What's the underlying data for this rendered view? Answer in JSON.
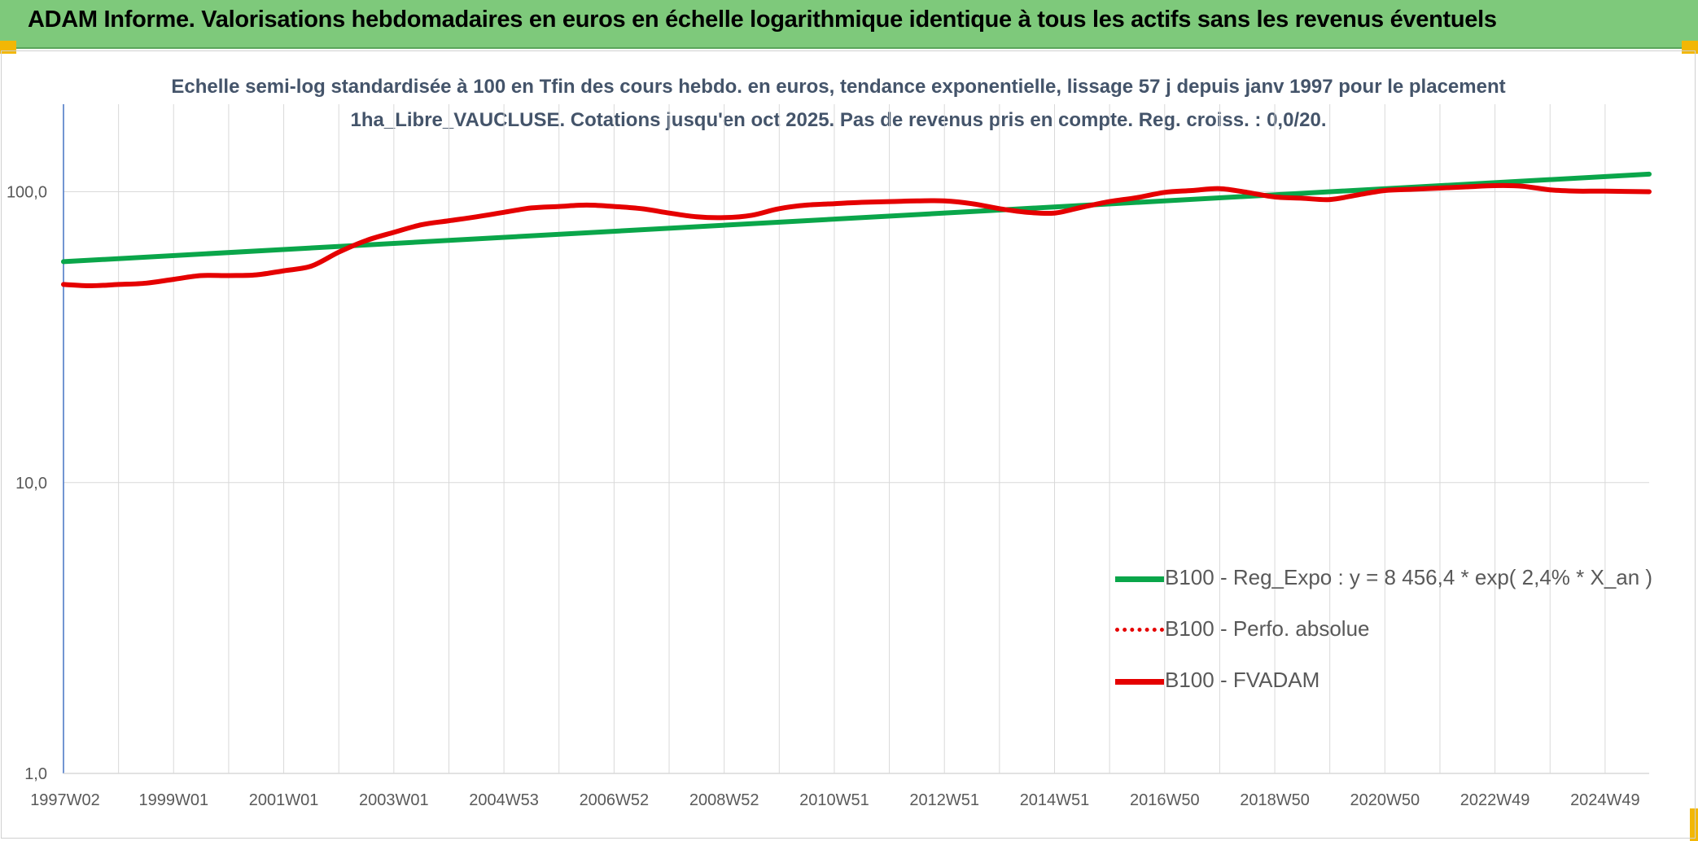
{
  "banner": {
    "title": "ADAM Informe. Valorisations hebdomadaires en euros en échelle logarithmique identique à tous les actifs sans les revenus éventuels",
    "color": "#7ec97b"
  },
  "chart_data": {
    "type": "line",
    "title": "Echelle semi-log standardisée à 100 en Tfin des cours hebdo. en euros, tendance exponentielle, lissage 57 j depuis janv 1997 pour le placement 1ha_Libre_VAUCLUSE. Cotations jusqu'en oct 2025. Pas de revenus pris en compte. Reg. croiss. : 0,0/20.",
    "y_scale": "log",
    "ylim": [
      1,
      200
    ],
    "y_ticks": [
      {
        "value": 1,
        "label": "1,0"
      },
      {
        "value": 10,
        "label": "10,0"
      },
      {
        "value": 100,
        "label": "100,0"
      }
    ],
    "x_range": [
      1997.0,
      2025.8
    ],
    "x_ticks": [
      {
        "value": 1997.0,
        "label": "1997W02"
      },
      {
        "value": 1999.0,
        "label": "1999W01"
      },
      {
        "value": 2001.0,
        "label": "2001W01"
      },
      {
        "value": 2003.0,
        "label": "2003W01"
      },
      {
        "value": 2005.0,
        "label": "2004W53"
      },
      {
        "value": 2007.0,
        "label": "2006W52"
      },
      {
        "value": 2009.0,
        "label": "2008W52"
      },
      {
        "value": 2011.0,
        "label": "2010W51"
      },
      {
        "value": 2013.0,
        "label": "2012W51"
      },
      {
        "value": 2015.0,
        "label": "2014W51"
      },
      {
        "value": 2017.0,
        "label": "2016W50"
      },
      {
        "value": 2019.0,
        "label": "2018W50"
      },
      {
        "value": 2021.0,
        "label": "2020W50"
      },
      {
        "value": 2023.0,
        "label": "2022W49"
      },
      {
        "value": 2025.0,
        "label": "2024W49"
      }
    ],
    "x_minor_gridlines": true,
    "legend_position": "lower-right",
    "series": [
      {
        "name": "B100 - Reg_Expo : y = 8 456,4 * exp( 2,4% *  X_an )",
        "style": "solid",
        "color": "#0aa64a",
        "x": [
          1997.0,
          2025.8
        ],
        "y": [
          57.5,
          115.0
        ]
      },
      {
        "name": "B100 - Perfo. absolue",
        "style": "dotted",
        "color": "#e50000",
        "x": [],
        "y": []
      },
      {
        "name": "B100 - FVADAM",
        "style": "solid",
        "color": "#e50000",
        "x": [
          1997.0,
          1997.5,
          1998.0,
          1998.5,
          1999.0,
          1999.5,
          2000.0,
          2000.5,
          2001.0,
          2001.5,
          2002.0,
          2002.5,
          2003.0,
          2003.5,
          2004.0,
          2004.5,
          2005.0,
          2005.5,
          2006.0,
          2006.5,
          2007.0,
          2007.5,
          2008.0,
          2008.5,
          2009.0,
          2009.5,
          2010.0,
          2010.5,
          2011.0,
          2011.5,
          2012.0,
          2012.5,
          2013.0,
          2013.5,
          2014.0,
          2014.5,
          2015.0,
          2015.5,
          2016.0,
          2016.5,
          2017.0,
          2017.5,
          2018.0,
          2018.5,
          2019.0,
          2019.5,
          2020.0,
          2020.5,
          2021.0,
          2021.5,
          2022.0,
          2022.5,
          2023.0,
          2023.5,
          2024.0,
          2024.5,
          2025.0,
          2025.8
        ],
        "y": [
          48.0,
          47.5,
          48.0,
          48.5,
          50.0,
          51.5,
          51.5,
          51.8,
          53.5,
          55.5,
          62.0,
          68.0,
          72.5,
          77.0,
          79.5,
          82.0,
          85.0,
          88.0,
          89.0,
          90.0,
          89.0,
          87.5,
          84.5,
          82.0,
          81.5,
          83.0,
          87.5,
          90.0,
          91.0,
          92.0,
          92.5,
          93.0,
          93.0,
          91.0,
          87.5,
          85.0,
          84.5,
          88.5,
          92.5,
          95.5,
          99.5,
          101.0,
          102.5,
          99.5,
          96.0,
          95.0,
          94.0,
          97.5,
          101.0,
          102.0,
          103.0,
          104.0,
          105.0,
          104.5,
          101.5,
          100.5,
          100.5,
          100.0
        ]
      }
    ]
  }
}
